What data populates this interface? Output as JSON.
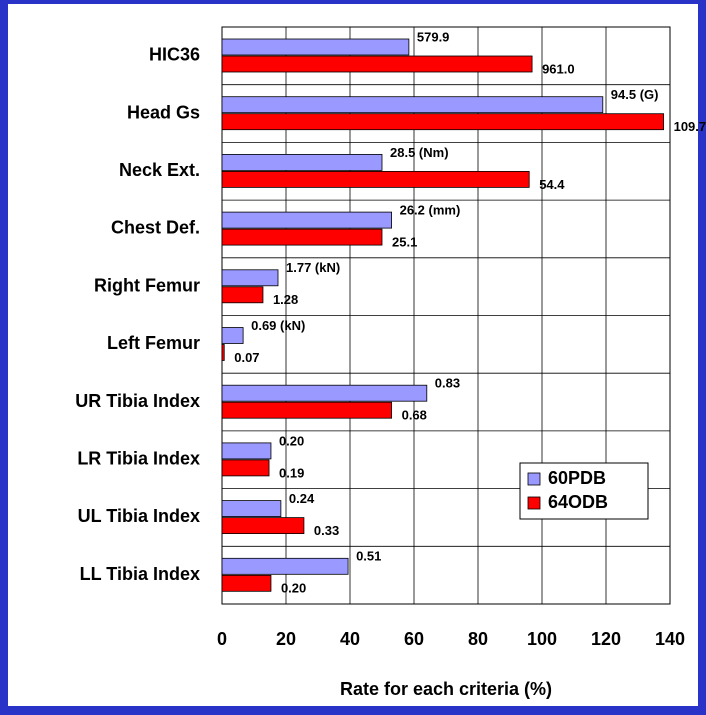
{
  "chart_data": {
    "type": "hbar",
    "categories": [
      "HIC36",
      "Head Gs",
      "Neck Ext.",
      "Chest Def.",
      "Right Femur",
      "Left Femur",
      "UR Tibia Index",
      "LR Tibia Index",
      "UL Tibia Index",
      "LL Tibia Index"
    ],
    "series": [
      {
        "name": "60PDB",
        "color": "#9999ff",
        "values": [
          58.4,
          119,
          50,
          53,
          17.5,
          6.6,
          64,
          15.3,
          18.4,
          39.4
        ],
        "measured": [
          "579.9",
          "94.5 (G)",
          "28.5 (Nm)",
          "26.2 (mm)",
          "1.77 (kN)",
          "0.69 (kN)",
          "0.83",
          "0.20",
          "0.24",
          "0.51"
        ]
      },
      {
        "name": "64ODB",
        "color": "#ff0000",
        "values": [
          96.9,
          138,
          96,
          50,
          12.8,
          0.7,
          53,
          14.7,
          25.6,
          15.3
        ],
        "measured": [
          "961.0",
          "109.7",
          "54.4",
          "25.1",
          "1.28",
          "0.07",
          "0.68",
          "0.19",
          "0.33",
          "0.20"
        ]
      }
    ],
    "x_label": "Rate for each criteria (%)",
    "xlim": [
      0,
      140
    ],
    "xticks": [
      0,
      20,
      40,
      60,
      80,
      100,
      120,
      140
    ],
    "grid": true,
    "legend": "lower right"
  }
}
